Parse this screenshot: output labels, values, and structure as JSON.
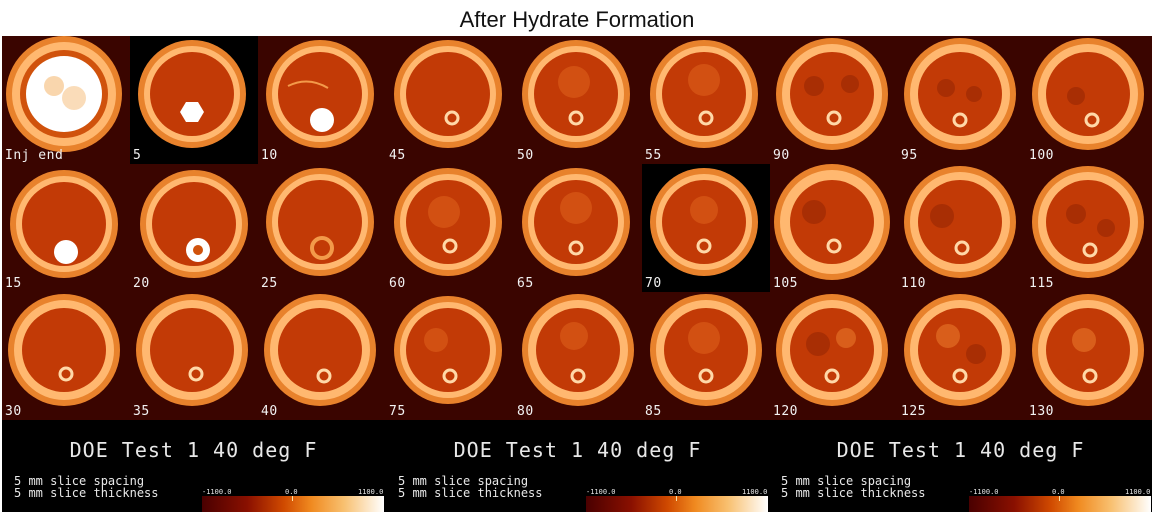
{
  "title": "After Hydrate Formation",
  "slice_labels": [
    "Inj end",
    "5",
    "10",
    "45",
    "50",
    "55",
    "90",
    "95",
    "100",
    "15",
    "20",
    "25",
    "60",
    "65",
    "70",
    "105",
    "110",
    "115",
    "30",
    "35",
    "40",
    "75",
    "80",
    "85",
    "120",
    "125",
    "130"
  ],
  "footers": [
    {
      "title": "DOE Test 1 40 deg F",
      "spacing": "5 mm slice spacing",
      "thickness": "5 mm slice thickness",
      "cb_min": "-1100.0",
      "cb_mid": "0.0",
      "cb_max": "1100.0"
    },
    {
      "title": "DOE Test 1 40 deg F",
      "spacing": "5 mm slice spacing",
      "thickness": "5 mm slice thickness",
      "cb_min": "-1100.0",
      "cb_mid": "0.0",
      "cb_max": "1100.0"
    },
    {
      "title": "DOE Test 1 40 deg F",
      "spacing": "5 mm slice spacing",
      "thickness": "5 mm slice thickness",
      "cb_min": "-1100.0",
      "cb_mid": "0.0",
      "cb_max": "1100.0"
    }
  ],
  "colors": {
    "background_dark": "#3a0500",
    "background_black": "#000000",
    "ring_outer": "#f39a4a",
    "ring_highlight": "#ffd8a8",
    "core_fill": "#c23a06",
    "bright_feature": "#ffffff"
  }
}
